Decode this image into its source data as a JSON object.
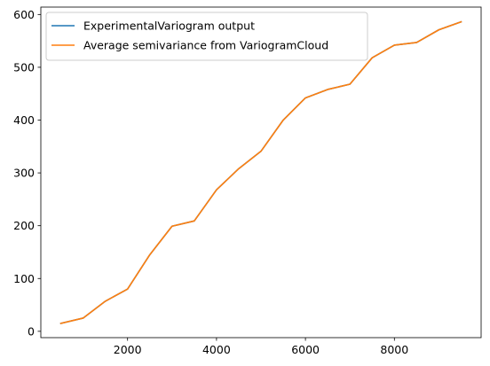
{
  "chart_data": {
    "type": "line",
    "title": "",
    "xlabel": "",
    "ylabel": "",
    "xlim": [
      50,
      9950
    ],
    "ylim": [
      -12,
      614
    ],
    "xticks": [
      2000,
      4000,
      6000,
      8000
    ],
    "yticks": [
      0,
      100,
      200,
      300,
      400,
      500,
      600
    ],
    "grid": false,
    "legend_position": "top-left",
    "x": [
      500,
      1000,
      1500,
      2000,
      2500,
      3000,
      3500,
      4000,
      4500,
      5000,
      5500,
      6000,
      6500,
      7000,
      7500,
      8000,
      8500,
      9000,
      9500
    ],
    "series": [
      {
        "name": "ExperimentalVariogram output",
        "color": "#1f77b4",
        "values": [
          15,
          25,
          57,
          80,
          145,
          199,
          209,
          268,
          308,
          341,
          400,
          442,
          458,
          468,
          518,
          542,
          547,
          571,
          586
        ]
      },
      {
        "name": "Average semivariance from VariogramCloud",
        "color": "#ff7f0e",
        "values": [
          15,
          25,
          57,
          80,
          145,
          199,
          209,
          268,
          308,
          341,
          400,
          442,
          458,
          468,
          518,
          542,
          547,
          571,
          586
        ]
      }
    ]
  }
}
